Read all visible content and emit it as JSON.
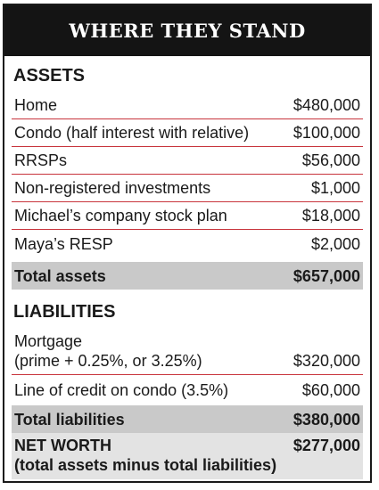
{
  "title": "WHERE THEY STAND",
  "assets": {
    "heading": "ASSETS",
    "items": [
      {
        "label": "Home",
        "value": "$480,000"
      },
      {
        "label": "Condo (half interest with relative)",
        "value": "$100,000"
      },
      {
        "label": "RRSPs",
        "value": "$56,000"
      },
      {
        "label": "Non-registered investments",
        "value": "$1,000"
      },
      {
        "label": "Michael’s company stock plan",
        "value": "$18,000"
      },
      {
        "label": "Maya’s RESP",
        "value": "$2,000"
      }
    ],
    "total_label": "Total assets",
    "total_value": "$657,000"
  },
  "liabilities": {
    "heading": "LIABILITIES",
    "items": [
      {
        "label_line1": "Mortgage",
        "label_line2": "(prime + 0.25%, or 3.25%)",
        "value": "$320,000"
      },
      {
        "label": "Line of credit on condo (3.5%)",
        "value": "$60,000"
      }
    ],
    "total_label": "Total liabilities",
    "total_value": "$380,000"
  },
  "net_worth": {
    "label_line1": "NET WORTH",
    "label_line2": "(total assets minus total liabilities)",
    "value": "$277,000"
  }
}
